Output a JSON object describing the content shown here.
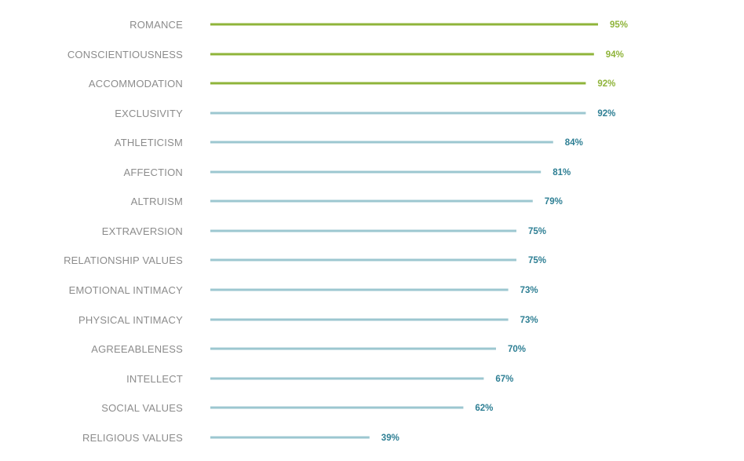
{
  "chart_data": {
    "type": "bar",
    "orientation": "horizontal",
    "title": "",
    "xlabel": "",
    "ylabel": "",
    "xlim": [
      0,
      100
    ],
    "grid": false,
    "legend": "none",
    "categories": [
      "ROMANCE",
      "CONSCIENTIOUSNESS",
      "ACCOMMODATION",
      "EXCLUSIVITY",
      "ATHLETICISM",
      "AFFECTION",
      "ALTRUISM",
      "EXTRAVERSION",
      "RELATIONSHIP VALUES",
      "EMOTIONAL INTIMACY",
      "PHYSICAL INTIMACY",
      "AGREEABLENESS",
      "INTELLECT",
      "SOCIAL VALUES",
      "RELIGIOUS VALUES"
    ],
    "values": [
      95,
      94,
      92,
      92,
      84,
      81,
      79,
      75,
      75,
      73,
      73,
      70,
      67,
      62,
      39
    ],
    "value_labels": [
      "95%",
      "94%",
      "92%",
      "92%",
      "84%",
      "81%",
      "79%",
      "75%",
      "75%",
      "73%",
      "73%",
      "70%",
      "67%",
      "62%",
      "39%"
    ],
    "highlighted_count": 3,
    "colors": {
      "highlight_bar": "#8fb43a",
      "highlight_text": "#8fb43a",
      "bar": "#9cc7d0",
      "value_text": "#2e7f94",
      "category_text": "#8c8c8c"
    }
  }
}
